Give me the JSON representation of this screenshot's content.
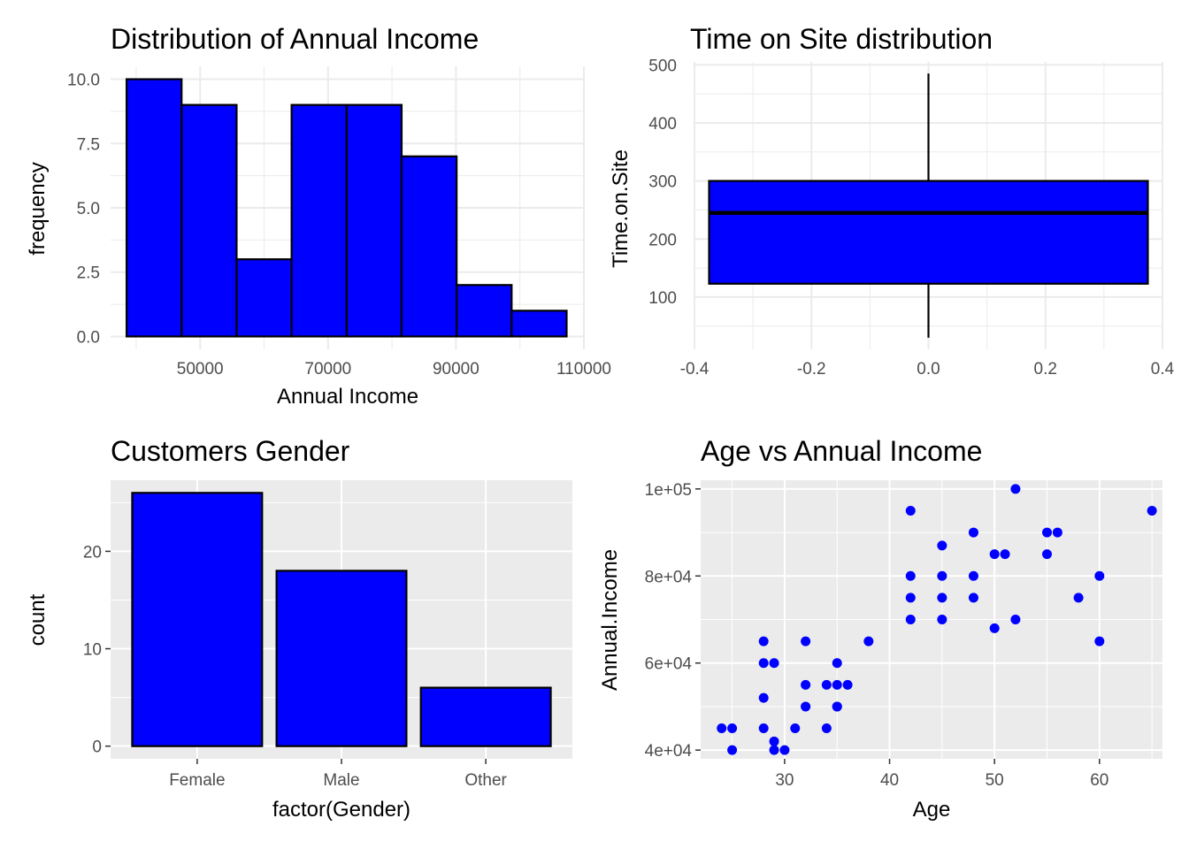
{
  "colors": {
    "fill": "#0000ff",
    "outline": "#000000",
    "panel_grey": "#ebebeb",
    "grid_light": "#ebebeb",
    "grid_white": "#ffffff",
    "tick_text": "#4d4d4d"
  },
  "chart_data": [
    {
      "type": "bar",
      "subtype": "histogram",
      "title": "Distribution of Annual Income",
      "xlabel": "Annual Income",
      "ylabel": "frequency",
      "theme": "minimal",
      "bins": [
        {
          "x0": 38500,
          "x1": 47100,
          "count": 10
        },
        {
          "x0": 47100,
          "x1": 55700,
          "count": 9
        },
        {
          "x0": 55700,
          "x1": 64300,
          "count": 3
        },
        {
          "x0": 64300,
          "x1": 72900,
          "count": 9
        },
        {
          "x0": 72900,
          "x1": 81500,
          "count": 9
        },
        {
          "x0": 81500,
          "x1": 90100,
          "count": 7
        },
        {
          "x0": 90100,
          "x1": 98700,
          "count": 2
        },
        {
          "x0": 98700,
          "x1": 107300,
          "count": 1
        }
      ],
      "xlim": [
        36000,
        110000
      ],
      "ylim": [
        -0.5,
        10.5
      ],
      "xticks": [
        50000,
        70000,
        90000,
        110000
      ],
      "xtick_labels": [
        "50000",
        "70000",
        "90000",
        "110000"
      ],
      "yticks": [
        0,
        2.5,
        5,
        7.5,
        10
      ],
      "ytick_labels": [
        "0.0",
        "2.5",
        "5.0",
        "7.5",
        "10.0"
      ],
      "grid": true
    },
    {
      "type": "box",
      "title": "Time on Site distribution",
      "xlabel": "",
      "ylabel": "Time.on.Site",
      "theme": "minimal",
      "box": {
        "x_center": 0,
        "x_half_width": 0.375,
        "min": 30,
        "q1": 123,
        "median": 245,
        "q3": 300,
        "max": 485
      },
      "xlim": [
        -0.4,
        0.4
      ],
      "ylim": [
        10,
        505
      ],
      "xticks": [
        -0.4,
        -0.2,
        0,
        0.2,
        0.4
      ],
      "xtick_labels": [
        "-0.4",
        "-0.2",
        "0.0",
        "0.2",
        "0.4"
      ],
      "yticks": [
        100,
        200,
        300,
        400,
        500
      ],
      "ytick_labels": [
        "100",
        "200",
        "300",
        "400",
        "500"
      ],
      "grid": true
    },
    {
      "type": "bar",
      "title": "Customers Gender",
      "xlabel": "factor(Gender)",
      "ylabel": "count",
      "theme": "grey",
      "categories": [
        "Female",
        "Male",
        "Other"
      ],
      "values": [
        26,
        18,
        6
      ],
      "ylim": [
        -1.3,
        27.3
      ],
      "yticks": [
        0,
        10,
        20
      ],
      "ytick_labels": [
        "0",
        "10",
        "20"
      ],
      "grid": true
    },
    {
      "type": "scatter",
      "title": "Age vs Annual Income",
      "xlabel": "Age",
      "ylabel": "Annual.Income",
      "theme": "grey",
      "points": [
        [
          24,
          45000
        ],
        [
          25,
          45000
        ],
        [
          25,
          40000
        ],
        [
          28,
          65000
        ],
        [
          28,
          60000
        ],
        [
          28,
          52000
        ],
        [
          28,
          45000
        ],
        [
          29,
          60000
        ],
        [
          29,
          42000
        ],
        [
          29,
          40000
        ],
        [
          30,
          40000
        ],
        [
          31,
          45000
        ],
        [
          32,
          65000
        ],
        [
          32,
          55000
        ],
        [
          32,
          50000
        ],
        [
          34,
          55000
        ],
        [
          34,
          45000
        ],
        [
          35,
          60000
        ],
        [
          35,
          55000
        ],
        [
          35,
          50000
        ],
        [
          35,
          50000
        ],
        [
          36,
          55000
        ],
        [
          38,
          65000
        ],
        [
          42,
          95000
        ],
        [
          42,
          80000
        ],
        [
          42,
          75000
        ],
        [
          42,
          70000
        ],
        [
          45,
          87000
        ],
        [
          45,
          80000
        ],
        [
          45,
          75000
        ],
        [
          45,
          70000
        ],
        [
          48,
          90000
        ],
        [
          48,
          80000
        ],
        [
          48,
          75000
        ],
        [
          50,
          85000
        ],
        [
          50,
          68000
        ],
        [
          51,
          85000
        ],
        [
          52,
          100000
        ],
        [
          52,
          70000
        ],
        [
          55,
          90000
        ],
        [
          55,
          85000
        ],
        [
          56,
          90000
        ],
        [
          58,
          75000
        ],
        [
          60,
          80000
        ],
        [
          60,
          65000
        ],
        [
          65,
          95000
        ]
      ],
      "xlim": [
        22,
        66
      ],
      "ylim": [
        38000,
        102000
      ],
      "xticks": [
        30,
        40,
        50,
        60
      ],
      "xtick_labels": [
        "30",
        "40",
        "50",
        "60"
      ],
      "yticks": [
        40000,
        60000,
        80000,
        100000
      ],
      "ytick_labels": [
        "4e+04",
        "6e+04",
        "8e+04",
        "1e+05"
      ],
      "grid": true
    }
  ]
}
